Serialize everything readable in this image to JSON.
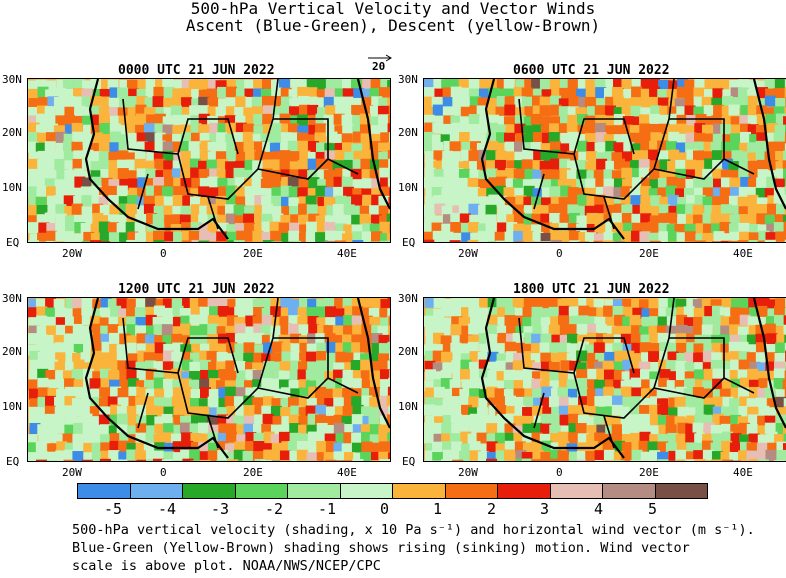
{
  "title": {
    "line1": "500-hPa Vertical Velocity and Vector Winds",
    "line2": "Ascent (Blue-Green), Descent (yellow-Brown)"
  },
  "vector_scale": {
    "label": "20"
  },
  "panels": [
    {
      "time": "0000 UTC 21 JUN 2022"
    },
    {
      "time": "0600 UTC 21 JUN 2022"
    },
    {
      "time": "1200 UTC 21 JUN 2022"
    },
    {
      "time": "1800 UTC 21 JUN 2022"
    }
  ],
  "axes": {
    "lat_labels": [
      "30N",
      "20N",
      "10N",
      "EQ"
    ],
    "lon_labels": [
      "20W",
      "0",
      "20E",
      "40E"
    ]
  },
  "colorbar": {
    "colors": [
      "#3c8ce8",
      "#6eaff0",
      "#28a828",
      "#5ad45a",
      "#a0eba0",
      "#c8f5c8",
      "#fab43c",
      "#f56e14",
      "#e61e0a",
      "#e6beb4",
      "#b48c82",
      "#785046"
    ],
    "tick_labels": [
      "-5",
      "-4",
      "-3",
      "-2",
      "-1",
      "0",
      "1",
      "2",
      "3",
      "4",
      "5"
    ]
  },
  "caption": {
    "line1": "500-hPa vertical velocity (shading, x 10 Pa s⁻¹) and horizontal wind vector (m s⁻¹).",
    "line2": "Blue-Green (Yellow-Brown) shading shows rising (sinking) motion. Wind vector",
    "line3": "scale is above plot. NOAA/NWS/NCEP/CPC"
  }
}
